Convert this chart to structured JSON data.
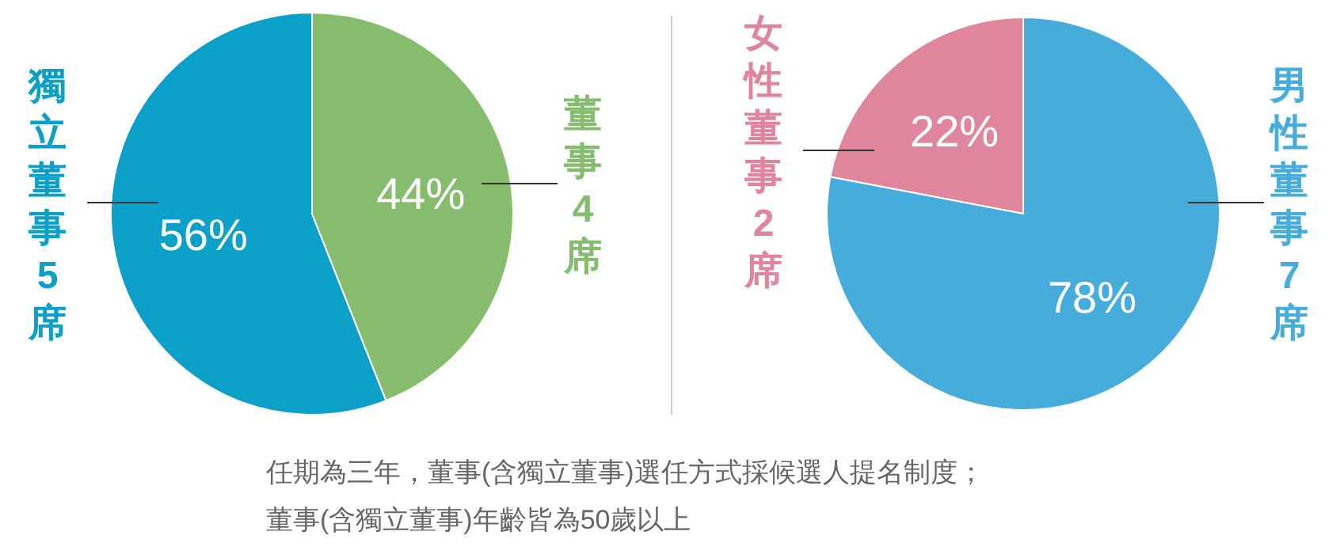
{
  "chart_data": [
    {
      "type": "pie",
      "categories": [
        "獨立董事5席",
        "董事4席"
      ],
      "values": [
        56,
        44
      ],
      "colors": [
        "#0aa0c8",
        "#86bc6e"
      ],
      "value_labels": [
        "56%",
        "44%"
      ]
    },
    {
      "type": "pie",
      "categories": [
        "女性董事2席",
        "男性董事7席"
      ],
      "values": [
        22,
        78
      ],
      "colors": [
        "#e0869c",
        "#45acdc"
      ],
      "value_labels": [
        "22%",
        "78%"
      ]
    },
    {
      "type": "other",
      "annotations": [
        "任期為三年，董事(含獨立董事)選任方式採候選人提名制度；",
        "董事(含獨立董事)年齡皆為50歲以上"
      ]
    }
  ]
}
